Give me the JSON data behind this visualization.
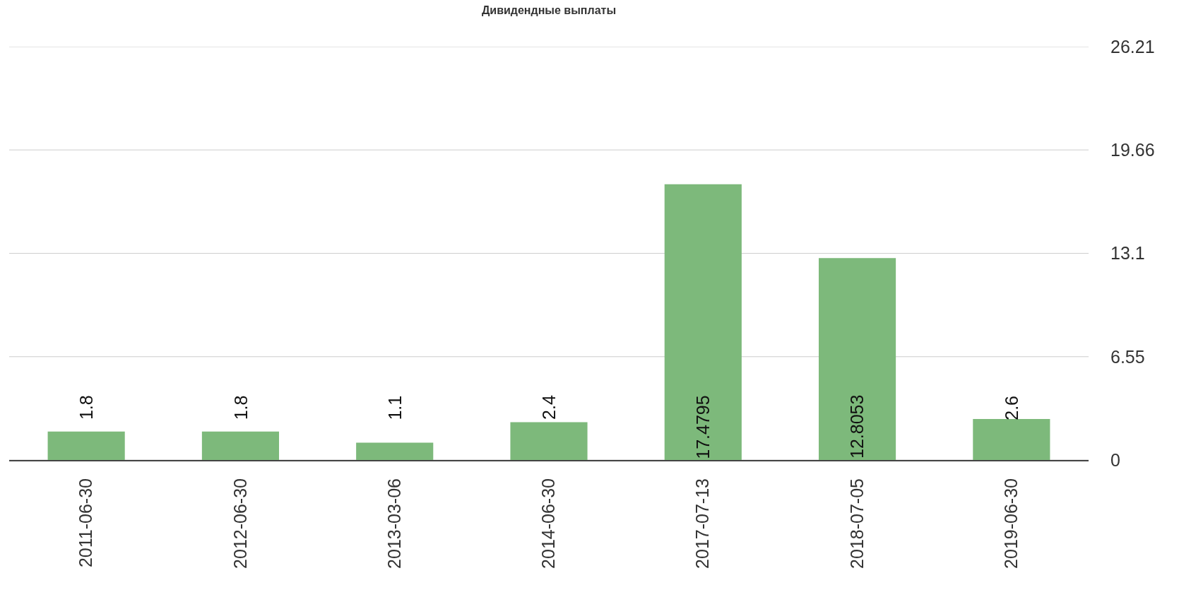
{
  "chart_data": {
    "type": "bar",
    "title": "Дивидендные выплаты",
    "categories": [
      "2011-06-30",
      "2012-06-30",
      "2013-03-06",
      "2014-06-30",
      "2017-07-13",
      "2018-07-05",
      "2019-06-30"
    ],
    "values": [
      1.8,
      1.8,
      1.1,
      2.4,
      17.4795,
      12.8053,
      2.6
    ],
    "color": "#7db97b",
    "ylim": [
      0,
      26.21
    ],
    "yticks": [
      0,
      6.55,
      13.1,
      19.66,
      26.21
    ],
    "grid": "y",
    "data_labels": true
  }
}
